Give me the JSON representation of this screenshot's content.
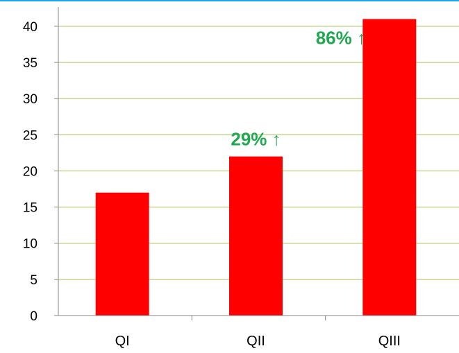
{
  "chart_data": {
    "type": "bar",
    "categories": [
      "QI",
      "QII",
      "QIII"
    ],
    "values": [
      17,
      22,
      41
    ],
    "ylim": [
      0,
      42
    ],
    "yticks": [
      0,
      5,
      10,
      15,
      20,
      25,
      30,
      35,
      40
    ],
    "grid": true,
    "annotations": [
      {
        "category": "QII",
        "text": "29% ↑"
      },
      {
        "category": "QIII",
        "text": "86% ↑"
      }
    ],
    "colors": {
      "bar": "#ff0000",
      "grid": "#c5d48f",
      "annotation": "#1fa84f",
      "axis": "#868686",
      "top_line": "#1aa7e8"
    }
  }
}
